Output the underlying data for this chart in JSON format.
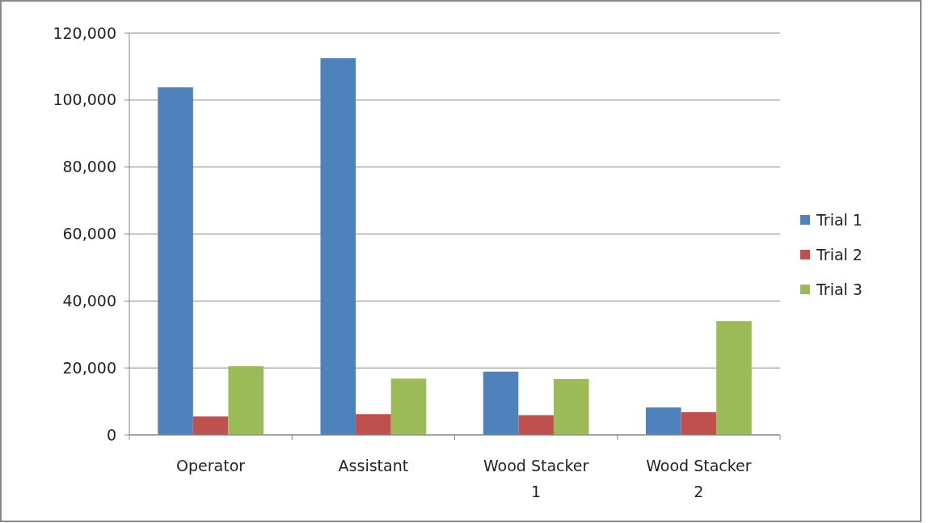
{
  "chart_data": {
    "type": "bar",
    "categories": [
      "Operator",
      "Assistant",
      "Wood Stacker 1",
      "Wood Stacker 2"
    ],
    "series": [
      {
        "name": "Trial 1",
        "color": "#4f81bd",
        "values": [
          103800,
          112500,
          18900,
          8200
        ]
      },
      {
        "name": "Trial 2",
        "color": "#c0504d",
        "values": [
          5500,
          6200,
          5900,
          6800
        ]
      },
      {
        "name": "Trial 3",
        "color": "#9bbb59",
        "values": [
          20500,
          16800,
          16700,
          34000
        ]
      }
    ],
    "ylim": [
      0,
      120000
    ],
    "yticks": [
      {
        "value": 0,
        "label": "0"
      },
      {
        "value": 20000,
        "label": "20,000"
      },
      {
        "value": 40000,
        "label": "40,000"
      },
      {
        "value": 60000,
        "label": "60,000"
      },
      {
        "value": 80000,
        "label": "80,000"
      },
      {
        "value": 100000,
        "label": "100,000"
      },
      {
        "value": 120000,
        "label": "120,000"
      }
    ],
    "grid": "y",
    "legend": "right"
  }
}
